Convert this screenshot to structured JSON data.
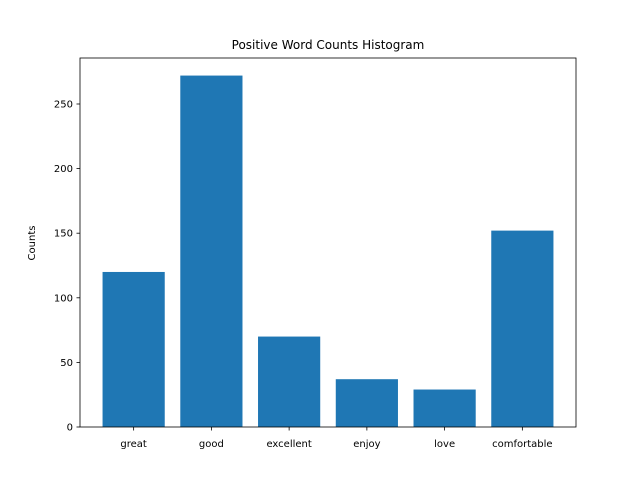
{
  "chart_data": {
    "type": "bar",
    "title": "Positive Word Counts Histogram",
    "xlabel": "",
    "ylabel": "Counts",
    "categories": [
      "great",
      "good",
      "excellent",
      "enjoy",
      "love",
      "comfortable"
    ],
    "values": [
      120,
      272,
      70,
      37,
      29,
      152
    ],
    "ylim": [
      0,
      285.6
    ],
    "yticks": [
      0,
      50,
      100,
      150,
      200,
      250
    ],
    "grid": false,
    "colors": {
      "bar": "#1f77b4",
      "axis": "#000000"
    }
  }
}
